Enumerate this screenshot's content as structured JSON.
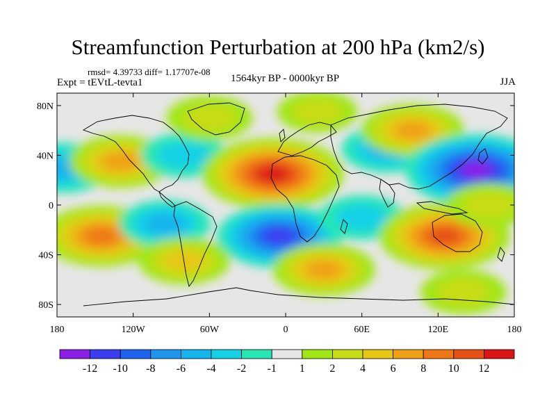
{
  "title": "Streamfunction Perturbation at 200 hPa (km2/s)",
  "stats": "rmsd= 4.39733 diff= 1.17707e-08",
  "experiment": "Expt = tEVtL-tevta1",
  "period": "1564kyr BP - 0000kyr BP",
  "season": "JJA",
  "axes": {
    "x_ticks": [
      {
        "lon": -180,
        "label": "180"
      },
      {
        "lon": -120,
        "label": "120W"
      },
      {
        "lon": -60,
        "label": "60W"
      },
      {
        "lon": 0,
        "label": "0"
      },
      {
        "lon": 60,
        "label": "60E"
      },
      {
        "lon": 120,
        "label": "120E"
      },
      {
        "lon": 180,
        "label": "180"
      }
    ],
    "y_ticks": [
      {
        "lat": 80,
        "label": "80N"
      },
      {
        "lat": 40,
        "label": "40N"
      },
      {
        "lat": 0,
        "label": "0"
      },
      {
        "lat": -40,
        "label": "40S"
      },
      {
        "lat": -80,
        "label": "80S"
      }
    ]
  },
  "colorbar": {
    "colors": [
      "#8c1fe6",
      "#3c3cf0",
      "#1e64f0",
      "#1e96ee",
      "#14b4ec",
      "#14d2e6",
      "#28e6b4",
      "#e6e6e6",
      "#a0e614",
      "#c8dc14",
      "#e6c814",
      "#f0a014",
      "#f07814",
      "#e65014",
      "#dc1414"
    ],
    "labels": [
      "-12",
      "-10",
      "-8",
      "-6",
      "-4",
      "-2",
      "-1",
      "1",
      "2",
      "4",
      "6",
      "8",
      "10",
      "12"
    ]
  },
  "field_anomalies": [
    {
      "lon": -175,
      "lat": 30,
      "value": -5
    },
    {
      "lon": -130,
      "lat": 35,
      "value": 6
    },
    {
      "lon": -80,
      "lat": 40,
      "value": -3
    },
    {
      "lon": -60,
      "lat": 70,
      "value": 3
    },
    {
      "lon": -10,
      "lat": 25,
      "value": 13
    },
    {
      "lon": 25,
      "lat": 75,
      "value": 2
    },
    {
      "lon": 80,
      "lat": 45,
      "value": -4
    },
    {
      "lon": 100,
      "lat": 60,
      "value": 6
    },
    {
      "lon": 150,
      "lat": 28,
      "value": -13
    },
    {
      "lon": -145,
      "lat": -25,
      "value": 9
    },
    {
      "lon": -95,
      "lat": -15,
      "value": -4
    },
    {
      "lon": -5,
      "lat": -25,
      "value": -10
    },
    {
      "lon": 60,
      "lat": -10,
      "value": -3
    },
    {
      "lon": 125,
      "lat": -25,
      "value": 11
    },
    {
      "lon": -80,
      "lat": -45,
      "value": 4
    },
    {
      "lon": 30,
      "lat": -52,
      "value": 6
    },
    {
      "lon": 140,
      "lat": -70,
      "value": 3
    },
    {
      "lon": 160,
      "lat": 0,
      "value": 3
    }
  ]
}
